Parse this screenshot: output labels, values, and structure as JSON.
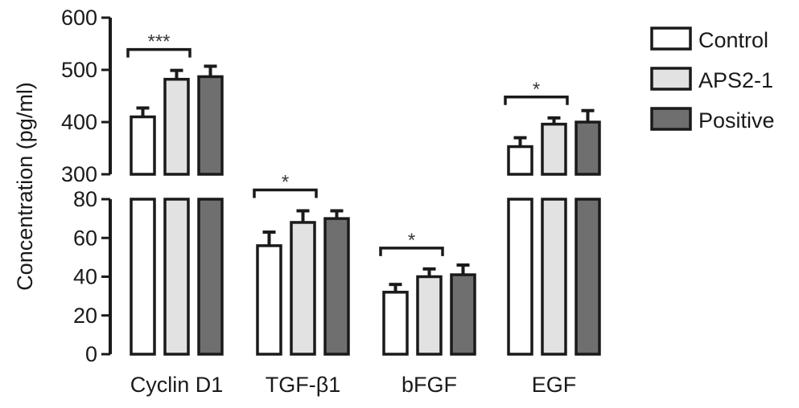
{
  "chart_data": {
    "type": "bar",
    "ylabel": "Concentration (pg/ml)",
    "xlabel": "",
    "categories": [
      "Cyclin D1",
      "TGF-β1",
      "bFGF",
      "EGF"
    ],
    "series": [
      {
        "name": "Control",
        "values": [
          410,
          56,
          32,
          353
        ],
        "errors": [
          17,
          7,
          4,
          17
        ],
        "color": "#ffffff"
      },
      {
        "name": "APS2-1",
        "values": [
          482,
          68,
          40,
          396
        ],
        "errors": [
          17,
          6,
          4,
          12
        ],
        "color": "#e2e2e2"
      },
      {
        "name": "Positive",
        "values": [
          487,
          70,
          41,
          400
        ],
        "errors": [
          20,
          4,
          5,
          22
        ],
        "color": "#6f6f6f"
      }
    ],
    "y_axis_broken": true,
    "lower_segment": {
      "ylim": [
        0,
        80
      ],
      "ticks": [
        "0",
        "20",
        "40",
        "60",
        "80"
      ]
    },
    "upper_segment": {
      "ylim": [
        300,
        600
      ],
      "ticks": [
        "300",
        "400",
        "500",
        "600"
      ]
    },
    "significance": [
      {
        "category": "Cyclin D1",
        "label": "***"
      },
      {
        "category": "TGF-β1",
        "label": "*"
      },
      {
        "category": "bFGF",
        "label": "*"
      },
      {
        "category": "EGF",
        "label": "*"
      }
    ],
    "legend_position": "top-right",
    "grid": false
  }
}
